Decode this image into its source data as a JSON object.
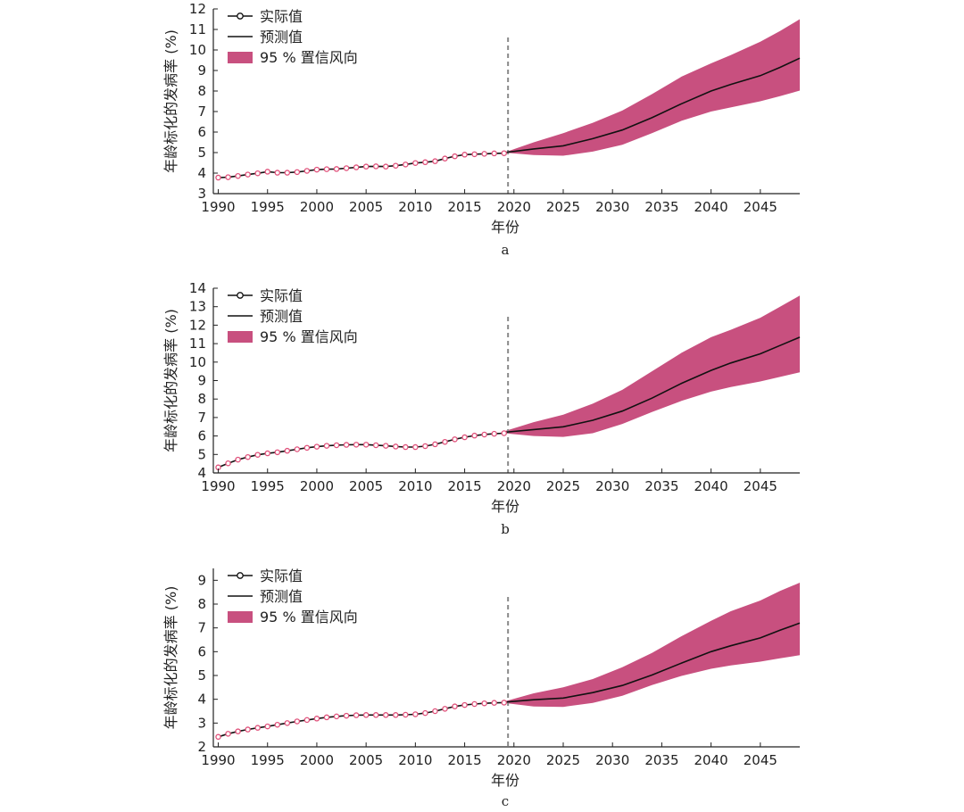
{
  "chart_data": [
    {
      "type": "line",
      "panel_label": "a",
      "xlabel": "年份",
      "ylabel": "年龄标化的发病率 (%)",
      "xlim": [
        1989.5,
        2049
      ],
      "ylim": [
        3,
        12
      ],
      "xticks": [
        1990,
        1995,
        2000,
        2005,
        2010,
        2015,
        2020,
        2025,
        2030,
        2035,
        2040,
        2045
      ],
      "yticks": [
        3,
        4,
        5,
        6,
        7,
        8,
        9,
        10,
        11,
        12
      ],
      "divider_x": 2019.4,
      "legend": {
        "actual": "实际值",
        "forecast": "预测值",
        "ci": "95 % 置信风向",
        "placement": "top-left"
      },
      "series": [
        {
          "name": "实际值",
          "x": [
            1990,
            1991,
            1992,
            1993,
            1994,
            1995,
            1996,
            1997,
            1998,
            1999,
            2000,
            2001,
            2002,
            2003,
            2004,
            2005,
            2006,
            2007,
            2008,
            2009,
            2010,
            2011,
            2012,
            2013,
            2014,
            2015,
            2016,
            2017,
            2018,
            2019
          ],
          "values": [
            3.78,
            3.8,
            3.86,
            3.93,
            3.99,
            4.07,
            4.02,
            4.02,
            4.05,
            4.11,
            4.17,
            4.19,
            4.2,
            4.24,
            4.28,
            4.32,
            4.33,
            4.32,
            4.36,
            4.42,
            4.49,
            4.53,
            4.58,
            4.71,
            4.82,
            4.9,
            4.92,
            4.94,
            4.96,
            4.97
          ]
        },
        {
          "name": "预测值",
          "x": [
            2019,
            2022,
            2025,
            2028,
            2031,
            2034,
            2037,
            2040,
            2042,
            2045,
            2047,
            2049
          ],
          "values": [
            5.0,
            5.18,
            5.33,
            5.68,
            6.1,
            6.7,
            7.38,
            8.0,
            8.32,
            8.75,
            9.15,
            9.6
          ]
        },
        {
          "name": "95 % 置信风向",
          "x": [
            2019,
            2022,
            2025,
            2028,
            2031,
            2034,
            2037,
            2040,
            2042,
            2045,
            2047,
            2049
          ],
          "lower": [
            5.0,
            4.88,
            4.85,
            5.05,
            5.38,
            5.95,
            6.55,
            7.0,
            7.2,
            7.5,
            7.75,
            8.02
          ],
          "upper": [
            5.0,
            5.5,
            5.95,
            6.45,
            7.05,
            7.85,
            8.7,
            9.35,
            9.75,
            10.4,
            10.92,
            11.5
          ]
        }
      ]
    },
    {
      "type": "line",
      "panel_label": "b",
      "xlabel": "年份",
      "ylabel": "年龄标化的发病率 (%)",
      "xlim": [
        1989.5,
        2049
      ],
      "ylim": [
        4,
        14
      ],
      "xticks": [
        1990,
        1995,
        2000,
        2005,
        2010,
        2015,
        2020,
        2025,
        2030,
        2035,
        2040,
        2045
      ],
      "yticks": [
        4,
        5,
        6,
        7,
        8,
        9,
        10,
        11,
        12,
        13,
        14
      ],
      "divider_x": 2019.4,
      "legend": {
        "actual": "实际值",
        "forecast": "预测值",
        "ci": "95 % 置信风向",
        "placement": "top-left"
      },
      "series": [
        {
          "name": "实际值",
          "x": [
            1990,
            1991,
            1992,
            1993,
            1994,
            1995,
            1996,
            1997,
            1998,
            1999,
            2000,
            2001,
            2002,
            2003,
            2004,
            2005,
            2006,
            2007,
            2008,
            2009,
            2010,
            2011,
            2012,
            2013,
            2014,
            2015,
            2016,
            2017,
            2018,
            2019
          ],
          "values": [
            4.3,
            4.52,
            4.72,
            4.86,
            4.98,
            5.06,
            5.12,
            5.2,
            5.28,
            5.36,
            5.42,
            5.47,
            5.5,
            5.52,
            5.53,
            5.53,
            5.5,
            5.47,
            5.43,
            5.4,
            5.4,
            5.45,
            5.55,
            5.68,
            5.82,
            5.93,
            6.02,
            6.08,
            6.12,
            6.15
          ]
        },
        {
          "name": "预测值",
          "x": [
            2019,
            2022,
            2025,
            2028,
            2031,
            2034,
            2037,
            2040,
            2042,
            2045,
            2047,
            2049
          ],
          "values": [
            6.2,
            6.35,
            6.5,
            6.85,
            7.35,
            8.05,
            8.85,
            9.55,
            9.95,
            10.45,
            10.9,
            11.35
          ]
        },
        {
          "name": "95 % 置信风向",
          "x": [
            2019,
            2022,
            2025,
            2028,
            2031,
            2034,
            2037,
            2040,
            2042,
            2045,
            2047,
            2049
          ],
          "lower": [
            6.15,
            6.0,
            5.95,
            6.15,
            6.65,
            7.3,
            7.9,
            8.4,
            8.65,
            8.95,
            9.2,
            9.45
          ],
          "upper": [
            6.25,
            6.75,
            7.15,
            7.75,
            8.5,
            9.5,
            10.5,
            11.35,
            11.75,
            12.4,
            13.0,
            13.6
          ]
        }
      ]
    },
    {
      "type": "line",
      "panel_label": "c",
      "xlabel": "年份",
      "ylabel": "年龄标化的发病率 (%)",
      "xlim": [
        1989.5,
        2049
      ],
      "ylim": [
        2,
        9.5
      ],
      "xticks": [
        1990,
        1995,
        2000,
        2005,
        2010,
        2015,
        2020,
        2025,
        2030,
        2035,
        2040,
        2045
      ],
      "yticks": [
        2,
        3,
        4,
        5,
        6,
        7,
        8,
        9
      ],
      "divider_x": 2019.4,
      "legend": {
        "actual": "实际值",
        "forecast": "预测值",
        "ci": "95 % 置信风向",
        "placement": "top-left"
      },
      "series": [
        {
          "name": "实际值",
          "x": [
            1990,
            1991,
            1992,
            1993,
            1994,
            1995,
            1996,
            1997,
            1998,
            1999,
            2000,
            2001,
            2002,
            2003,
            2004,
            2005,
            2006,
            2007,
            2008,
            2009,
            2010,
            2011,
            2012,
            2013,
            2014,
            2015,
            2016,
            2017,
            2018,
            2019
          ],
          "values": [
            2.42,
            2.55,
            2.65,
            2.73,
            2.8,
            2.86,
            2.93,
            3.0,
            3.07,
            3.13,
            3.19,
            3.24,
            3.28,
            3.31,
            3.33,
            3.34,
            3.34,
            3.34,
            3.34,
            3.35,
            3.37,
            3.42,
            3.5,
            3.6,
            3.7,
            3.76,
            3.8,
            3.83,
            3.85,
            3.86
          ]
        },
        {
          "name": "预测值",
          "x": [
            2019,
            2022,
            2025,
            2028,
            2031,
            2034,
            2037,
            2040,
            2042,
            2045,
            2047,
            2049
          ],
          "values": [
            3.88,
            3.98,
            4.05,
            4.28,
            4.58,
            5.02,
            5.52,
            6.0,
            6.25,
            6.58,
            6.9,
            7.2
          ]
        },
        {
          "name": "95 % 置信风向",
          "x": [
            2019,
            2022,
            2025,
            2028,
            2031,
            2034,
            2037,
            2040,
            2042,
            2045,
            2047,
            2049
          ],
          "lower": [
            3.85,
            3.7,
            3.68,
            3.85,
            4.15,
            4.6,
            4.98,
            5.28,
            5.42,
            5.58,
            5.72,
            5.85
          ],
          "upper": [
            3.9,
            4.25,
            4.5,
            4.85,
            5.35,
            5.95,
            6.65,
            7.3,
            7.7,
            8.15,
            8.55,
            8.9
          ]
        }
      ]
    }
  ]
}
